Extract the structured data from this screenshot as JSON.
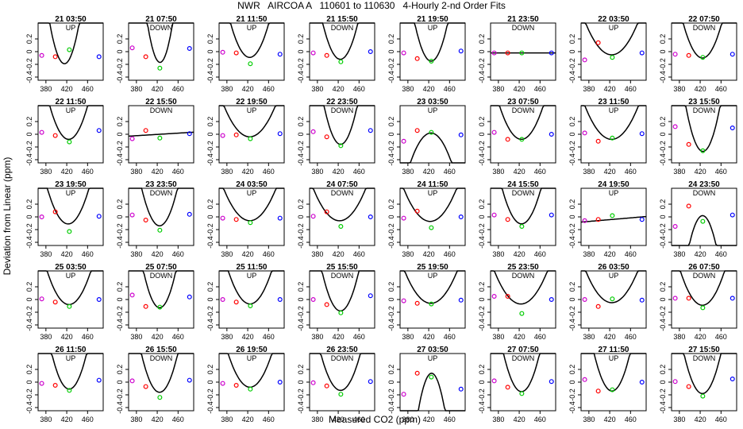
{
  "title": "NWR   AIRCOA A   110601 to 110630   4-Hourly 2-nd Order Fits",
  "xlabel": "Measured CO2 (ppm)",
  "ylabel": "Deviation from Linear (ppm)",
  "colors": {
    "point1": "#cc00cc",
    "point2": "#ff0000",
    "point3": "#00cc00",
    "point4": "#0000ff",
    "curve": "#000000"
  },
  "chart_data": {
    "type": "scatter",
    "xlim": [
      365,
      490
    ],
    "ylim": [
      -0.45,
      0.45
    ],
    "xticks": [
      380,
      420,
      460
    ],
    "xtick_labels": [
      "380",
      "420",
      "460"
    ],
    "yticks": [
      0.2,
      0,
      -0.2,
      -0.4
    ],
    "ytick_labels": [
      "0.2",
      "0",
      "-0.2",
      "-0.4"
    ],
    "x_standards": [
      372,
      398,
      425,
      482
    ],
    "panels": [
      {
        "title": "21 03:50",
        "label": "UP",
        "y": [
          -0.06,
          -0.08,
          0.03,
          -0.08
        ],
        "curve": [
          -0.12,
          0.015,
          0.0008
        ]
      },
      {
        "title": "21 07:50",
        "label": "DOWN",
        "y": [
          0.06,
          -0.08,
          -0.26,
          0.05
        ],
        "curve": [
          -0.17,
          -0.0007,
          0.00106
        ]
      },
      {
        "title": "21 11:50",
        "label": "UP",
        "y": [
          -0.01,
          -0.02,
          -0.19,
          -0.04
        ],
        "curve": [
          -0.09,
          0.001,
          0.0004
        ]
      },
      {
        "title": "21 15:50",
        "label": "DOWN",
        "y": [
          -0.02,
          -0.06,
          -0.16,
          0.0
        ],
        "curve": [
          -0.12,
          0.001,
          0.0005
        ]
      },
      {
        "title": "21 19:50",
        "label": "UP",
        "y": [
          -0.02,
          -0.11,
          -0.15,
          0.01
        ],
        "curve": [
          -0.15,
          0.0003,
          0.0006
        ]
      },
      {
        "title": "21 23:50",
        "label": "DOWN",
        "y": [
          -0.02,
          -0.02,
          -0.02,
          -0.02
        ],
        "curve": [
          -0.02,
          0.0,
          0.0
        ]
      },
      {
        "title": "22 03:50",
        "label": "UP",
        "y": [
          -0.13,
          0.14,
          -0.09,
          -0.02
        ],
        "curve": [
          -0.05,
          0.0005,
          0.0002
        ]
      },
      {
        "title": "22 07:50",
        "label": "DOWN",
        "y": [
          -0.04,
          -0.06,
          -0.09,
          -0.04
        ],
        "curve": [
          -0.1,
          0.0005,
          0.0004
        ]
      },
      {
        "title": "22 11:50",
        "label": "UP",
        "y": [
          0.03,
          -0.02,
          -0.12,
          0.06
        ],
        "curve": [
          -0.08,
          0.001,
          0.0004
        ]
      },
      {
        "title": "22 15:50",
        "label": "DOWN",
        "y": [
          -0.07,
          0.06,
          -0.06,
          0.01
        ],
        "curve": [
          0.0,
          0.0005,
          0.0
        ]
      },
      {
        "title": "22 19:50",
        "label": "UP",
        "y": [
          -0.02,
          -0.01,
          -0.07,
          0.01
        ],
        "curve": [
          -0.04,
          0.0005,
          0.0002
        ]
      },
      {
        "title": "22 23:50",
        "label": "DOWN",
        "y": [
          0.04,
          -0.04,
          -0.18,
          0.06
        ],
        "curve": [
          -0.16,
          0.0005,
          0.0006
        ]
      },
      {
        "title": "23 03:50",
        "label": "UP",
        "y": [
          -0.11,
          0.06,
          0.03,
          -0.01
        ],
        "curve": [
          0.02,
          -0.0004,
          -0.0003
        ]
      },
      {
        "title": "23 07:50",
        "label": "DOWN",
        "y": [
          0.03,
          -0.08,
          -0.08,
          0.0
        ],
        "curve": [
          -0.08,
          0.0005,
          0.0003
        ]
      },
      {
        "title": "23 11:50",
        "label": "UP",
        "y": [
          0.02,
          -0.11,
          -0.06,
          0.01
        ],
        "curve": [
          -0.08,
          0.0005,
          0.0002
        ]
      },
      {
        "title": "23 15:50",
        "label": "DOWN",
        "y": [
          0.12,
          -0.16,
          -0.26,
          0.1
        ],
        "curve": [
          -0.27,
          -0.0003,
          0.00066
        ]
      },
      {
        "title": "23 19:50",
        "label": "UP",
        "y": [
          0.0,
          0.08,
          -0.23,
          0.01
        ],
        "curve": [
          -0.11,
          0.0016,
          0.00035
        ]
      },
      {
        "title": "23 23:50",
        "label": "DOWN",
        "y": [
          0.03,
          -0.05,
          -0.21,
          0.04
        ],
        "curve": [
          -0.14,
          0.0005,
          0.0005
        ]
      },
      {
        "title": "24 03:50",
        "label": "UP",
        "y": [
          -0.02,
          -0.04,
          -0.09,
          -0.02
        ],
        "curve": [
          -0.06,
          0.0004,
          0.0002
        ]
      },
      {
        "title": "24 07:50",
        "label": "DOWN",
        "y": [
          0.01,
          0.08,
          -0.15,
          0.0
        ],
        "curve": [
          -0.06,
          0.001,
          0.0002
        ]
      },
      {
        "title": "24 11:50",
        "label": "UP",
        "y": [
          -0.02,
          0.09,
          -0.17,
          0.0
        ],
        "curve": [
          -0.07,
          0.0009,
          0.0002
        ]
      },
      {
        "title": "24 15:50",
        "label": "DOWN",
        "y": [
          0.03,
          -0.04,
          -0.15,
          0.03
        ],
        "curve": [
          -0.11,
          0.0004,
          0.0004
        ]
      },
      {
        "title": "24 19:50",
        "label": "UP",
        "y": [
          -0.06,
          -0.04,
          0.02,
          -0.04
        ],
        "curve": [
          -0.04,
          0.0007,
          0.0
        ]
      },
      {
        "title": "24 23:50",
        "label": "DOWN",
        "y": [
          -0.15,
          0.17,
          -0.07,
          0.03
        ],
        "curve": [
          0.02,
          -0.0005,
          -0.0007
        ]
      },
      {
        "title": "25 03:50",
        "label": "UP",
        "y": [
          0.01,
          -0.04,
          -0.11,
          0.0
        ],
        "curve": [
          -0.08,
          0.0004,
          0.0003
        ]
      },
      {
        "title": "25 07:50",
        "label": "DOWN",
        "y": [
          0.07,
          -0.11,
          -0.12,
          0.04
        ],
        "curve": [
          -0.13,
          0.0004,
          0.0006
        ]
      },
      {
        "title": "25 11:50",
        "label": "UP",
        "y": [
          0.0,
          -0.04,
          -0.1,
          0.0
        ],
        "curve": [
          -0.07,
          0.0004,
          0.0003
        ]
      },
      {
        "title": "25 15:50",
        "label": "DOWN",
        "y": [
          0.0,
          -0.08,
          -0.21,
          0.06
        ],
        "curve": [
          -0.18,
          0.0008,
          0.0005
        ]
      },
      {
        "title": "25 19:50",
        "label": "UP",
        "y": [
          -0.02,
          -0.06,
          -0.07,
          -0.01
        ],
        "curve": [
          -0.06,
          0.0003,
          0.0002
        ]
      },
      {
        "title": "25 23:50",
        "label": "DOWN",
        "y": [
          0.05,
          0.05,
          -0.22,
          0.0
        ],
        "curve": [
          -0.07,
          0.0007,
          0.0002
        ]
      },
      {
        "title": "26 03:50",
        "label": "UP",
        "y": [
          0.0,
          -0.11,
          0.01,
          -0.01
        ],
        "curve": [
          -0.05,
          0.0004,
          0.0002
        ]
      },
      {
        "title": "26 07:50",
        "label": "DOWN",
        "y": [
          0.02,
          0.02,
          -0.13,
          0.02
        ],
        "curve": [
          -0.09,
          0.0004,
          0.0003
        ]
      },
      {
        "title": "26 11:50",
        "label": "UP",
        "y": [
          -0.02,
          -0.05,
          -0.13,
          0.03
        ],
        "curve": [
          -0.11,
          0.0003,
          0.0005
        ]
      },
      {
        "title": "26 15:50",
        "label": "DOWN",
        "y": [
          0.02,
          -0.07,
          -0.24,
          0.03
        ],
        "curve": [
          -0.16,
          0.0005,
          0.0005
        ]
      },
      {
        "title": "26 19:50",
        "label": "UP",
        "y": [
          -0.02,
          -0.05,
          -0.11,
          0.0
        ],
        "curve": [
          -0.08,
          0.0004,
          0.0003
        ]
      },
      {
        "title": "26 23:50",
        "label": "DOWN",
        "y": [
          -0.01,
          -0.06,
          -0.19,
          0.01
        ],
        "curve": [
          -0.13,
          0.0004,
          0.0004
        ]
      },
      {
        "title": "27 03:50",
        "label": "UP",
        "y": [
          -0.19,
          0.14,
          0.08,
          -0.11
        ],
        "curve": [
          0.14,
          0.0009,
          -0.0009
        ]
      },
      {
        "title": "27 07:50",
        "label": "DOWN",
        "y": [
          0.02,
          -0.08,
          -0.18,
          0.01
        ],
        "curve": [
          -0.15,
          0.0005,
          0.0005
        ]
      },
      {
        "title": "27 11:50",
        "label": "UP",
        "y": [
          0.04,
          -0.14,
          -0.12,
          0.0
        ],
        "curve": [
          -0.14,
          0.0005,
          0.0005
        ]
      },
      {
        "title": "27 15:50",
        "label": "DOWN",
        "y": [
          0.01,
          -0.07,
          -0.22,
          0.05
        ],
        "curve": [
          -0.18,
          0.0007,
          0.0005
        ]
      }
    ]
  }
}
